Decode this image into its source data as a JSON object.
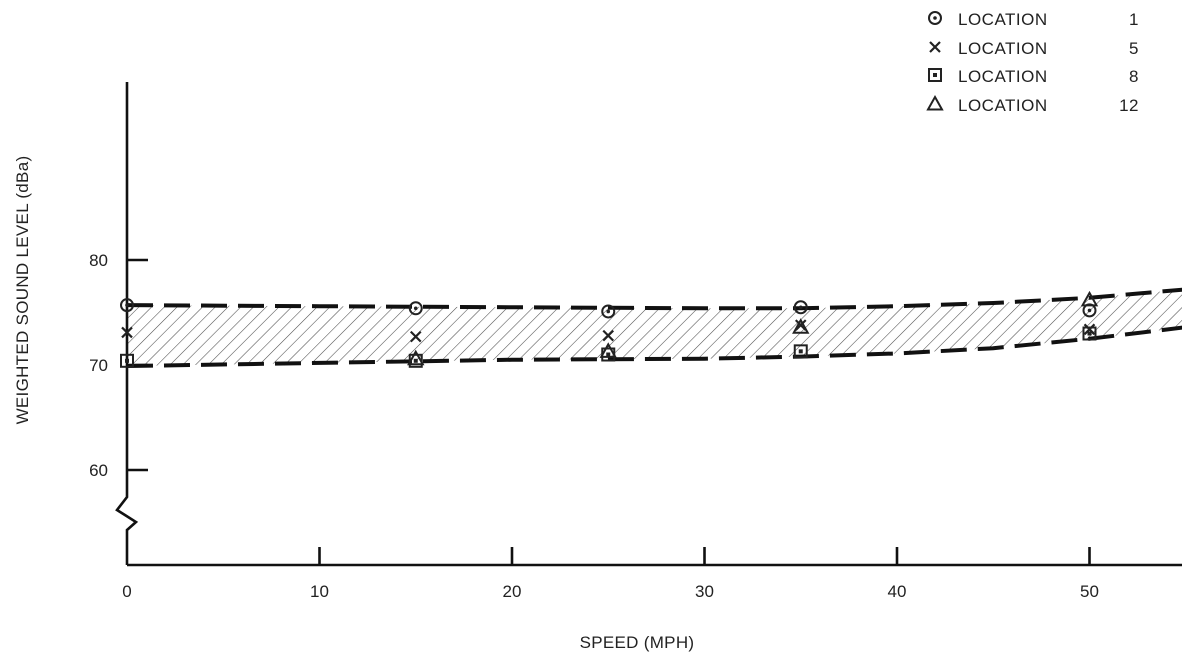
{
  "chart_data": {
    "type": "scatter",
    "xlabel": "SPEED (MPH)",
    "ylabel": "WEIGHTED SOUND LEVEL (dBa)",
    "xlim": [
      0,
      55
    ],
    "ylim": [
      55.5,
      80
    ],
    "x_ticks": [
      0,
      10,
      20,
      30,
      40,
      50
    ],
    "x_tick_labels": [
      "0",
      "10",
      "20",
      "30",
      "40",
      "50"
    ],
    "y_ticks": [
      60,
      70,
      80
    ],
    "y_tick_labels": [
      "60",
      "70",
      "80"
    ],
    "axis_break": "y",
    "grid": false,
    "legend_position": "top-right",
    "legend": [
      {
        "marker": "circle-dot",
        "label": "LOCATION",
        "number": "1"
      },
      {
        "marker": "cross",
        "label": "LOCATION",
        "number": "5"
      },
      {
        "marker": "square-dot",
        "label": "LOCATION",
        "number": "8"
      },
      {
        "marker": "triangle",
        "label": "LOCATION",
        "number": "12"
      }
    ],
    "series": [
      {
        "marker": "circle-dot",
        "x": [
          0,
          15,
          25,
          35,
          50
        ],
        "y": [
          75.7,
          75.4,
          75.1,
          75.5,
          75.2
        ]
      },
      {
        "marker": "cross",
        "x": [
          0,
          15,
          25,
          35,
          50
        ],
        "y": [
          73.1,
          72.7,
          72.8,
          73.8,
          73.4
        ]
      },
      {
        "marker": "square-dot",
        "x": [
          0,
          15,
          25,
          35,
          50
        ],
        "y": [
          70.4,
          70.4,
          71.0,
          71.3,
          73.0
        ]
      },
      {
        "marker": "triangle",
        "x": [
          15,
          25,
          35,
          50
        ],
        "y": [
          70.6,
          71.3,
          73.6,
          76.2
        ]
      }
    ],
    "envelope": {
      "style": "dashed-hatched-band",
      "upper": {
        "x": [
          0,
          10,
          20,
          30,
          35,
          40,
          45,
          50,
          55
        ],
        "y": [
          75.7,
          75.6,
          75.5,
          75.4,
          75.4,
          75.6,
          75.9,
          76.4,
          77.2
        ]
      },
      "lower": {
        "x": [
          0,
          10,
          20,
          30,
          35,
          40,
          45,
          50,
          55
        ],
        "y": [
          69.9,
          70.2,
          70.5,
          70.6,
          70.8,
          71.1,
          71.6,
          72.5,
          73.6
        ]
      }
    }
  }
}
